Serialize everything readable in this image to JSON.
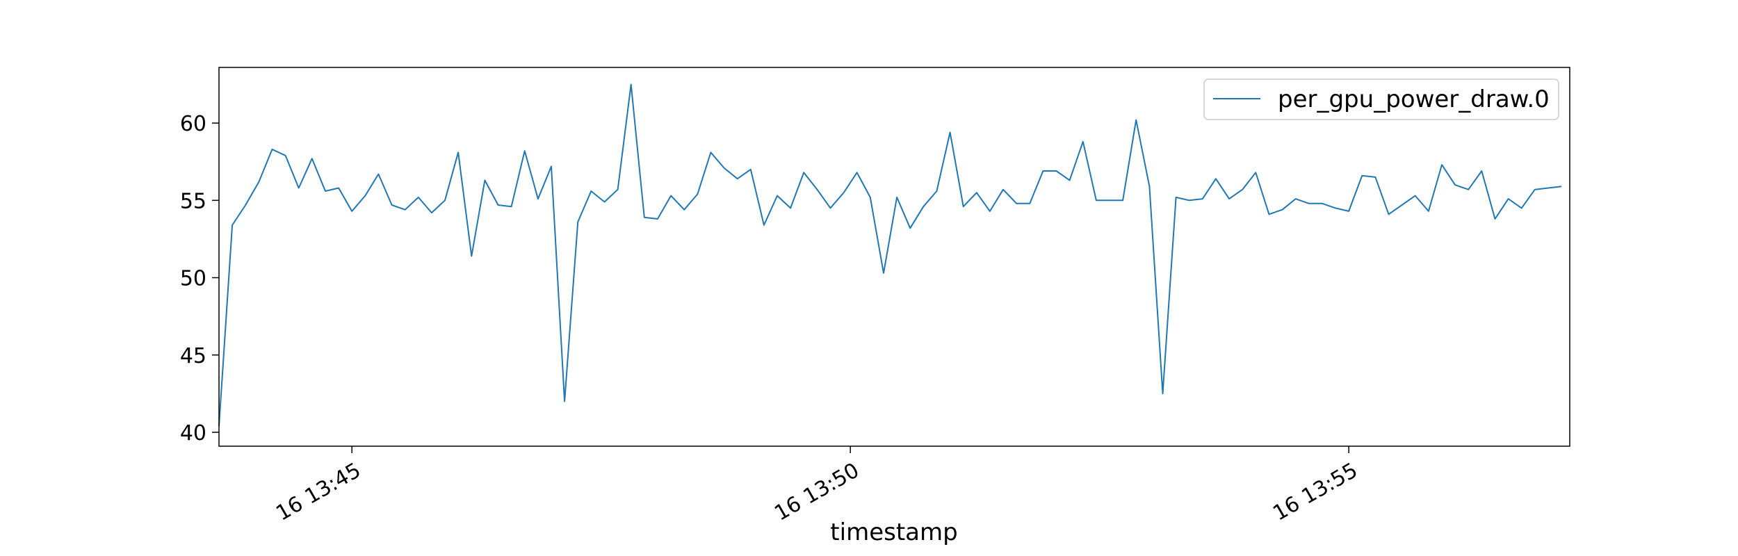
{
  "chart_data": {
    "type": "line",
    "xlabel": "timestamp",
    "ylabel": "",
    "ylim": [
      39.1,
      63.6
    ],
    "xlim": [
      "16 13:43:40",
      "16 13:57:13"
    ],
    "yticks": [
      40,
      45,
      50,
      55,
      60
    ],
    "xticks": [
      {
        "value": "16 13:45:00",
        "label": "16 13:45"
      },
      {
        "value": "16 13:50:00",
        "label": "16 13:50"
      },
      {
        "value": "16 13:55:00",
        "label": "16 13:55"
      }
    ],
    "grid": false,
    "legend_position": "top-right",
    "color": "#1f77b4",
    "series": [
      {
        "name": "per_gpu_power_draw.0",
        "x": [
          "16 13:43:40",
          "16 13:43:48",
          "16 13:43:56",
          "16 13:44:04",
          "16 13:44:12",
          "16 13:44:20",
          "16 13:44:28",
          "16 13:44:36",
          "16 13:44:44",
          "16 13:44:52",
          "16 13:45:00",
          "16 13:45:08",
          "16 13:45:16",
          "16 13:45:24",
          "16 13:45:32",
          "16 13:45:40",
          "16 13:45:48",
          "16 13:45:56",
          "16 13:46:04",
          "16 13:46:12",
          "16 13:46:20",
          "16 13:46:28",
          "16 13:46:36",
          "16 13:46:44",
          "16 13:46:52",
          "16 13:47:00",
          "16 13:47:08",
          "16 13:47:16",
          "16 13:47:24",
          "16 13:47:32",
          "16 13:47:40",
          "16 13:47:48",
          "16 13:47:56",
          "16 13:48:04",
          "16 13:48:12",
          "16 13:48:20",
          "16 13:48:28",
          "16 13:48:36",
          "16 13:48:44",
          "16 13:48:52",
          "16 13:49:00",
          "16 13:49:08",
          "16 13:49:16",
          "16 13:49:24",
          "16 13:49:32",
          "16 13:49:40",
          "16 13:49:48",
          "16 13:49:56",
          "16 13:50:04",
          "16 13:50:12",
          "16 13:50:20",
          "16 13:50:28",
          "16 13:50:36",
          "16 13:50:44",
          "16 13:50:52",
          "16 13:51:00",
          "16 13:51:08",
          "16 13:51:16",
          "16 13:51:24",
          "16 13:51:32",
          "16 13:51:40",
          "16 13:51:48",
          "16 13:51:56",
          "16 13:52:04",
          "16 13:52:12",
          "16 13:52:20",
          "16 13:52:28",
          "16 13:52:36",
          "16 13:52:44",
          "16 13:52:52",
          "16 13:53:00",
          "16 13:53:08",
          "16 13:53:16",
          "16 13:53:24",
          "16 13:53:32",
          "16 13:53:40",
          "16 13:53:48",
          "16 13:53:56",
          "16 13:54:04",
          "16 13:54:12",
          "16 13:54:20",
          "16 13:54:28",
          "16 13:54:36",
          "16 13:54:44",
          "16 13:54:52",
          "16 13:55:00",
          "16 13:55:08",
          "16 13:55:16",
          "16 13:55:24",
          "16 13:55:32",
          "16 13:55:40",
          "16 13:55:48",
          "16 13:55:56",
          "16 13:56:04",
          "16 13:56:12",
          "16 13:56:20",
          "16 13:56:28",
          "16 13:56:36",
          "16 13:56:44",
          "16 13:56:52",
          "16 13:57:00",
          "16 13:57:08"
        ],
        "y": [
          40.4,
          53.4,
          54.7,
          56.2,
          58.3,
          57.9,
          55.8,
          57.7,
          55.6,
          55.8,
          54.3,
          55.3,
          56.7,
          54.7,
          54.4,
          55.2,
          54.2,
          55.0,
          58.1,
          51.4,
          56.3,
          54.7,
          54.6,
          58.2,
          55.1,
          57.2,
          42.0,
          53.6,
          55.6,
          54.9,
          55.7,
          62.5,
          53.9,
          53.8,
          55.3,
          54.4,
          55.4,
          58.1,
          57.1,
          56.4,
          57.0,
          53.4,
          55.3,
          54.5,
          56.8,
          55.7,
          54.5,
          55.5,
          56.8,
          55.2,
          50.3,
          55.2,
          53.2,
          54.6,
          55.6,
          59.4,
          54.6,
          55.5,
          54.3,
          55.7,
          54.8,
          54.8,
          56.9,
          56.9,
          56.3,
          58.8,
          55.0,
          55.0,
          55.0,
          60.2,
          55.9,
          42.5,
          55.2,
          55.0,
          55.1,
          56.4,
          55.1,
          55.7,
          56.8,
          54.1,
          54.4,
          55.1,
          54.8,
          54.8,
          54.5,
          54.3,
          56.6,
          56.5,
          54.1,
          54.7,
          55.3,
          54.3,
          57.3,
          56.0,
          55.7,
          56.9,
          53.8,
          55.1,
          54.5,
          55.7,
          55.8,
          55.9
        ]
      }
    ]
  }
}
